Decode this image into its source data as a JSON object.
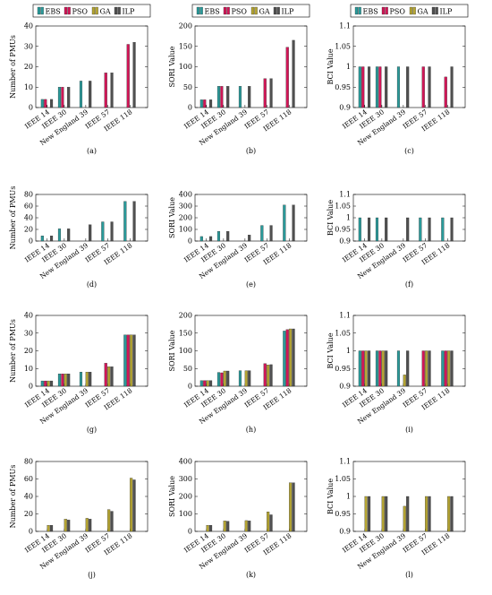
{
  "colors": {
    "EBS": "#2a9a9a",
    "PSO": "#d01657",
    "GA": "#b5a533",
    "ILP": "#505050"
  },
  "chart_data": [
    {
      "id": "a",
      "type": "bar",
      "caption": "(a)",
      "ylabel": "Number of PMUs",
      "ylim": [
        0,
        40
      ],
      "yticks": [
        "0",
        "10",
        "20",
        "30",
        "40"
      ],
      "categories": [
        "IEEE 14",
        "IEEE 30",
        "New England 39",
        "IEEE 57",
        "IEEE 118"
      ],
      "legend": [
        "EBS",
        "PSO",
        "GA",
        "ILP"
      ],
      "series": [
        {
          "name": "EBS",
          "values": [
            4,
            10,
            13,
            null,
            null
          ]
        },
        {
          "name": "PSO",
          "values": [
            4,
            10,
            null,
            17,
            31
          ]
        },
        {
          "name": "GA",
          "values": [
            null,
            null,
            null,
            null,
            null
          ]
        },
        {
          "name": "ILP",
          "values": [
            4,
            10,
            13,
            17,
            32
          ]
        }
      ]
    },
    {
      "id": "b",
      "type": "bar",
      "caption": "(b)",
      "ylabel": "SORI Value",
      "ylim": [
        0,
        200
      ],
      "yticks": [
        "0",
        "50",
        "100",
        "150",
        "200"
      ],
      "categories": [
        "IEEE 14",
        "IEEE 30",
        "New England 39",
        "IEEE 57",
        "IEEE 118"
      ],
      "legend": [
        "EBS",
        "PSO",
        "GA",
        "ILP"
      ],
      "series": [
        {
          "name": "EBS",
          "values": [
            19,
            52,
            52,
            null,
            null
          ]
        },
        {
          "name": "PSO",
          "values": [
            19,
            52,
            null,
            71,
            148
          ]
        },
        {
          "name": "GA",
          "values": [
            null,
            null,
            null,
            null,
            null
          ]
        },
        {
          "name": "ILP",
          "values": [
            19,
            52,
            52,
            71,
            165
          ]
        }
      ]
    },
    {
      "id": "c",
      "type": "bar",
      "caption": "(c)",
      "ylabel": "BCI Value",
      "ylim": [
        0.9,
        1.1
      ],
      "yticks": [
        "0.9",
        "0.95",
        "1",
        "1.05",
        "1.1"
      ],
      "categories": [
        "IEEE 14",
        "IEEE 30",
        "New England 39",
        "IEEE 57",
        "IEEE 118"
      ],
      "legend": [
        "EBS",
        "PSO",
        "GA",
        "ILP"
      ],
      "series": [
        {
          "name": "EBS",
          "values": [
            1,
            1,
            1,
            null,
            null
          ]
        },
        {
          "name": "PSO",
          "values": [
            1,
            1,
            null,
            1,
            0.975
          ]
        },
        {
          "name": "GA",
          "values": [
            null,
            null,
            null,
            null,
            null
          ]
        },
        {
          "name": "ILP",
          "values": [
            1,
            1,
            1,
            1,
            1
          ]
        }
      ]
    },
    {
      "id": "d",
      "type": "bar",
      "caption": "(d)",
      "ylabel": "Number of PMUs",
      "ylim": [
        0,
        80
      ],
      "yticks": [
        "0",
        "20",
        "40",
        "60",
        "80"
      ],
      "categories": [
        "IEEE 14",
        "IEEE 30",
        "New England 39",
        "IEEE 57",
        "IEEE 118"
      ],
      "legend": [],
      "series": [
        {
          "name": "EBS",
          "values": [
            9,
            21,
            null,
            33,
            68
          ]
        },
        {
          "name": "PSO",
          "values": [
            null,
            null,
            null,
            null,
            null
          ]
        },
        {
          "name": "GA",
          "values": [
            null,
            null,
            null,
            null,
            null
          ]
        },
        {
          "name": "ILP",
          "values": [
            9,
            21,
            28,
            33,
            68
          ]
        }
      ]
    },
    {
      "id": "e",
      "type": "bar",
      "caption": "(e)",
      "ylabel": "SORI Value",
      "ylim": [
        0,
        400
      ],
      "yticks": [
        "0",
        "100",
        "200",
        "300",
        "400"
      ],
      "categories": [
        "IEEE 14",
        "IEEE 30",
        "New England 39",
        "IEEE 57",
        "IEEE 118"
      ],
      "legend": [],
      "series": [
        {
          "name": "EBS",
          "values": [
            39,
            83,
            null,
            134,
            309
          ]
        },
        {
          "name": "PSO",
          "values": [
            null,
            null,
            null,
            null,
            null
          ]
        },
        {
          "name": "GA",
          "values": [
            null,
            null,
            null,
            null,
            null
          ]
        },
        {
          "name": "ILP",
          "values": [
            39,
            83,
            52,
            134,
            309
          ]
        }
      ]
    },
    {
      "id": "f",
      "type": "bar",
      "caption": "(f)",
      "ylabel": "BCI Value",
      "ylim": [
        0.9,
        1.1
      ],
      "yticks": [
        "0.9",
        "0.95",
        "1",
        "1.05",
        "1.1"
      ],
      "categories": [
        "IEEE 14",
        "IEEE 30",
        "New England 39",
        "IEEE 57",
        "IEEE 118"
      ],
      "legend": [],
      "series": [
        {
          "name": "EBS",
          "values": [
            1,
            1,
            null,
            1,
            1
          ]
        },
        {
          "name": "PSO",
          "values": [
            null,
            null,
            null,
            null,
            null
          ]
        },
        {
          "name": "GA",
          "values": [
            null,
            null,
            null,
            null,
            null
          ]
        },
        {
          "name": "ILP",
          "values": [
            1,
            1,
            1,
            1,
            1
          ]
        }
      ]
    },
    {
      "id": "g",
      "type": "bar",
      "caption": "(g)",
      "ylabel": "Number of PMUs",
      "ylim": [
        0,
        40
      ],
      "yticks": [
        "0",
        "10",
        "20",
        "30",
        "40"
      ],
      "categories": [
        "IEEE 14",
        "IEEE 30",
        "New England 39",
        "IEEE 57",
        "IEEE 118"
      ],
      "legend": [],
      "series": [
        {
          "name": "EBS",
          "values": [
            3,
            7,
            8,
            null,
            29
          ]
        },
        {
          "name": "PSO",
          "values": [
            3,
            7,
            null,
            13,
            29
          ]
        },
        {
          "name": "GA",
          "values": [
            3,
            7,
            8,
            11,
            29
          ]
        },
        {
          "name": "ILP",
          "values": [
            3,
            7,
            8,
            11,
            29
          ]
        }
      ]
    },
    {
      "id": "h",
      "type": "bar",
      "caption": "(h)",
      "ylabel": "SORI Value",
      "ylim": [
        0,
        200
      ],
      "yticks": [
        "0",
        "50",
        "100",
        "150",
        "200"
      ],
      "categories": [
        "IEEE 14",
        "IEEE 30",
        "New England 39",
        "IEEE 57",
        "IEEE 118"
      ],
      "legend": [],
      "series": [
        {
          "name": "EBS",
          "values": [
            16,
            39,
            44,
            null,
            156
          ]
        },
        {
          "name": "PSO",
          "values": [
            16,
            38,
            null,
            64,
            160
          ]
        },
        {
          "name": "GA",
          "values": [
            16,
            43,
            44,
            60,
            162
          ]
        },
        {
          "name": "ILP",
          "values": [
            16,
            43,
            44,
            61,
            162
          ]
        }
      ]
    },
    {
      "id": "i",
      "type": "bar",
      "caption": "(i)",
      "ylabel": "BCI Value",
      "ylim": [
        0.9,
        1.1
      ],
      "yticks": [
        "0.9",
        "0.95",
        "1",
        "1.05",
        "1.1"
      ],
      "categories": [
        "IEEE 14",
        "IEEE 30",
        "New England 39",
        "IEEE 57",
        "IEEE 118"
      ],
      "legend": [],
      "series": [
        {
          "name": "EBS",
          "values": [
            1,
            1,
            1,
            null,
            1
          ]
        },
        {
          "name": "PSO",
          "values": [
            1,
            1,
            null,
            1,
            1
          ]
        },
        {
          "name": "GA",
          "values": [
            1,
            1,
            0.932,
            1,
            1
          ]
        },
        {
          "name": "ILP",
          "values": [
            1,
            1,
            1,
            1,
            1
          ]
        }
      ]
    },
    {
      "id": "j",
      "type": "bar",
      "caption": "(j)",
      "ylabel": "Number of PMUs",
      "ylim": [
        0,
        80
      ],
      "yticks": [
        "0",
        "20",
        "40",
        "60",
        "80"
      ],
      "categories": [
        "IEEE 14",
        "IEEE 30",
        "New England 39",
        "IEEE 57",
        "IEEE 118"
      ],
      "legend": [],
      "series": [
        {
          "name": "EBS",
          "values": [
            null,
            null,
            null,
            null,
            null
          ]
        },
        {
          "name": "PSO",
          "values": [
            null,
            null,
            null,
            null,
            null
          ]
        },
        {
          "name": "GA",
          "values": [
            7,
            14,
            15,
            25,
            61
          ]
        },
        {
          "name": "ILP",
          "values": [
            7,
            13,
            14,
            23,
            59
          ]
        }
      ]
    },
    {
      "id": "k",
      "type": "bar",
      "caption": "(k)",
      "ylabel": "SORI Value",
      "ylim": [
        0,
        400
      ],
      "yticks": [
        "0",
        "100",
        "200",
        "300",
        "400"
      ],
      "categories": [
        "IEEE 14",
        "IEEE 30",
        "New England 39",
        "IEEE 57",
        "IEEE 118"
      ],
      "legend": [],
      "series": [
        {
          "name": "EBS",
          "values": [
            null,
            null,
            null,
            null,
            null
          ]
        },
        {
          "name": "PSO",
          "values": [
            null,
            null,
            null,
            null,
            null
          ]
        },
        {
          "name": "GA",
          "values": [
            35,
            60,
            62,
            112,
            278
          ]
        },
        {
          "name": "ILP",
          "values": [
            35,
            58,
            60,
            95,
            278
          ]
        }
      ]
    },
    {
      "id": "l",
      "type": "bar",
      "caption": "(l)",
      "ylabel": "BCI Value",
      "ylim": [
        0.9,
        1.1
      ],
      "yticks": [
        "0.9",
        "0.95",
        "1",
        "1.05",
        "1.1"
      ],
      "categories": [
        "IEEE 14",
        "IEEE 30",
        "New England 39",
        "IEEE 57",
        "IEEE 118"
      ],
      "legend": [],
      "series": [
        {
          "name": "EBS",
          "values": [
            null,
            null,
            null,
            null,
            null
          ]
        },
        {
          "name": "PSO",
          "values": [
            null,
            null,
            null,
            null,
            null
          ]
        },
        {
          "name": "GA",
          "values": [
            1,
            1,
            0.972,
            1,
            1
          ]
        },
        {
          "name": "ILP",
          "values": [
            1,
            1,
            1,
            1,
            1
          ]
        }
      ]
    }
  ]
}
